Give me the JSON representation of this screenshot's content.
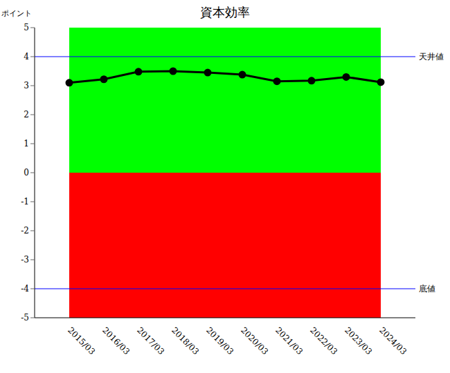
{
  "chart_data": {
    "type": "line",
    "title": "資本効率",
    "ylabel": "ポイント",
    "categories": [
      "2015/03",
      "2016/03",
      "2017/03",
      "2018/03",
      "2019/03",
      "2020/03",
      "2021/03",
      "2022/03",
      "2023/03",
      "2024/03"
    ],
    "values": [
      3.1,
      3.22,
      3.48,
      3.5,
      3.45,
      3.38,
      3.15,
      3.17,
      3.3,
      3.12
    ],
    "color": "#000000",
    "marker": "circle",
    "ylim": [
      -5,
      5
    ],
    "yticks": [
      -5,
      -4,
      -3,
      -2,
      -1,
      0,
      1,
      2,
      3,
      4,
      5
    ],
    "grid": false,
    "bands": [
      {
        "from": 0,
        "to": 5,
        "color": "#00ff00"
      },
      {
        "from": -5,
        "to": 0,
        "color": "#ff0000"
      }
    ],
    "reference_lines": [
      {
        "value": 4,
        "label": "天井値",
        "color": "#0000ff"
      },
      {
        "value": -4,
        "label": "底値",
        "color": "#0000ff"
      }
    ]
  }
}
